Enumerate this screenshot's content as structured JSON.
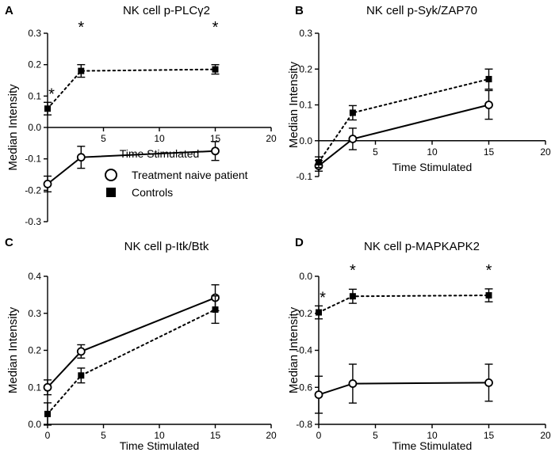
{
  "legend": {
    "items": [
      {
        "label": "Treatment naive patient",
        "marker": "open-circle",
        "line": "solid"
      },
      {
        "label": "Controls",
        "marker": "filled-square",
        "line": "dotted"
      }
    ]
  },
  "chart_data": [
    {
      "panel": "A",
      "type": "line",
      "title": "NK cell p-PLCγ2",
      "xlabel": "Time Stimulated",
      "ylabel": "Median Intensity",
      "xlim": [
        0,
        20
      ],
      "ylim": [
        -0.3,
        0.3
      ],
      "xticks": [
        5,
        10,
        15,
        20
      ],
      "yticks": [
        -0.3,
        -0.2,
        -0.1,
        0.0,
        0.1,
        0.2,
        0.3
      ],
      "ytick_labels": [
        "-0.3",
        "-0.2",
        "-0.1",
        "0.0",
        "0.1",
        "0.2",
        "0.3"
      ],
      "x": [
        0,
        3,
        15
      ],
      "series": [
        {
          "name": "Treatment naive patient",
          "values": [
            -0.18,
            -0.095,
            -0.075
          ],
          "errors": [
            0.025,
            0.035,
            0.03
          ]
        },
        {
          "name": "Controls",
          "values": [
            0.06,
            0.18,
            0.185
          ],
          "errors": [
            0.02,
            0.02,
            0.015
          ]
        }
      ],
      "significance": [
        {
          "x": 0,
          "label": "*"
        },
        {
          "x": 3,
          "label": "*"
        },
        {
          "x": 15,
          "label": "*"
        }
      ]
    },
    {
      "panel": "B",
      "type": "line",
      "title": "NK cell p-Syk/ZAP70",
      "xlabel": "Time Stimulated",
      "ylabel": "Median Intensity",
      "xlim": [
        0,
        20
      ],
      "ylim": [
        -0.1,
        0.3
      ],
      "xticks": [
        5,
        10,
        15,
        20
      ],
      "yticks": [
        -0.1,
        0.0,
        0.1,
        0.2,
        0.3
      ],
      "ytick_labels": [
        "-0.1",
        "0.0",
        "0.1",
        "0.2",
        "0.3"
      ],
      "x": [
        0,
        3,
        15
      ],
      "series": [
        {
          "name": "Treatment naive patient",
          "values": [
            -0.07,
            0.005,
            0.1
          ],
          "errors": [
            0.015,
            0.03,
            0.04
          ]
        },
        {
          "name": "Controls",
          "values": [
            -0.06,
            0.078,
            0.172
          ],
          "errors": [
            0.015,
            0.02,
            0.028
          ]
        }
      ],
      "significance": []
    },
    {
      "panel": "C",
      "type": "line",
      "title": "NK cell p-Itk/Btk",
      "xlabel": "Time Stimulated",
      "ylabel": "Median Intensity",
      "xlim": [
        0,
        20
      ],
      "ylim": [
        0,
        0.4
      ],
      "xticks": [
        0,
        5,
        10,
        15,
        20
      ],
      "yticks": [
        0.0,
        0.1,
        0.2,
        0.3,
        0.4
      ],
      "ytick_labels": [
        "0.0",
        "0.1",
        "0.2",
        "0.3",
        "0.4"
      ],
      "x": [
        0,
        3,
        15
      ],
      "series": [
        {
          "name": "Treatment naive patient",
          "values": [
            0.1,
            0.197,
            0.342
          ],
          "errors": [
            0.02,
            0.018,
            0.035
          ]
        },
        {
          "name": "Controls",
          "values": [
            0.028,
            0.132,
            0.31
          ],
          "errors": [
            0.03,
            0.02,
            0.037
          ]
        }
      ],
      "significance": []
    },
    {
      "panel": "D",
      "type": "line",
      "title": "NK cell p-MAPKAPK2",
      "xlabel": "Time Stimulated",
      "ylabel": "Median Intensity",
      "xlim": [
        0,
        20
      ],
      "ylim": [
        -0.8,
        0.0
      ],
      "xticks": [
        0,
        5,
        10,
        15,
        20
      ],
      "yticks": [
        -0.8,
        -0.6,
        -0.4,
        -0.2,
        0.0
      ],
      "ytick_labels": [
        "-0.8",
        "-0.6",
        "-0.4",
        "-0.2",
        "0.0"
      ],
      "x": [
        0,
        3,
        15
      ],
      "series": [
        {
          "name": "Treatment naive patient",
          "values": [
            -0.64,
            -0.58,
            -0.575
          ],
          "errors": [
            0.1,
            0.105,
            0.1
          ]
        },
        {
          "name": "Controls",
          "values": [
            -0.195,
            -0.108,
            -0.103
          ],
          "errors": [
            0.035,
            0.038,
            0.035
          ]
        }
      ],
      "significance": [
        {
          "x": 0,
          "label": "*"
        },
        {
          "x": 3,
          "label": "*"
        },
        {
          "x": 15,
          "label": "*"
        }
      ]
    }
  ]
}
